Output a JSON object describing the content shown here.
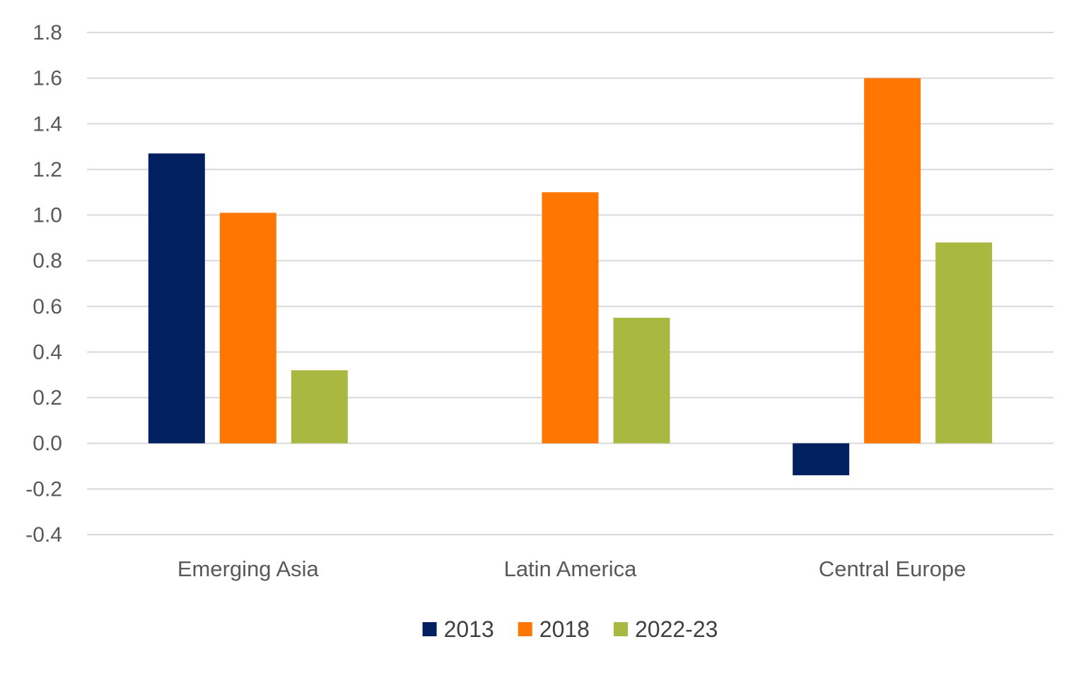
{
  "chart_data": {
    "type": "bar",
    "title": "",
    "xlabel": "",
    "ylabel": "",
    "ylim": [
      -0.4,
      1.8
    ],
    "yticks": [
      "1.8",
      "1.6",
      "1.4",
      "1.2",
      "1.0",
      "0.8",
      "0.6",
      "0.4",
      "0.2",
      "0.0",
      "-0.2",
      "-0.4"
    ],
    "categories": [
      "Emerging Asia",
      "Latin America",
      "Central Europe"
    ],
    "series": [
      {
        "name": "2013",
        "color": "#002060",
        "values": [
          1.27,
          null,
          -0.14
        ]
      },
      {
        "name": "2018",
        "color": "#ff7700",
        "values": [
          1.01,
          1.1,
          1.6
        ]
      },
      {
        "name": "2022-23",
        "color": "#a8b840",
        "values": [
          0.32,
          0.55,
          0.88
        ]
      }
    ],
    "grid": true,
    "legend_position": "bottom-center"
  }
}
